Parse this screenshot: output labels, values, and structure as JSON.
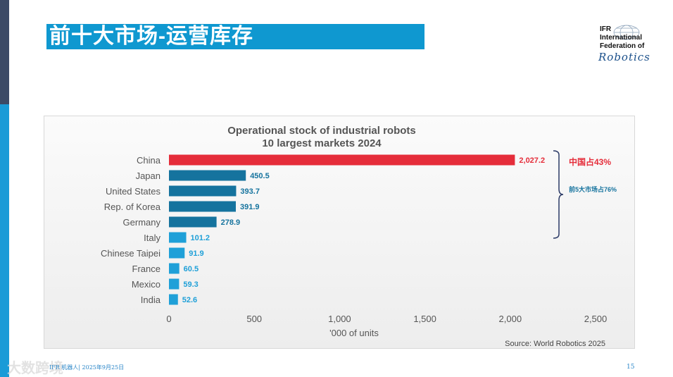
{
  "slide": {
    "title": "前十大市场-运营库存",
    "footer": "IFR 机器人| 2025年9月25日",
    "page_number": "15",
    "watermark": "大数跨境"
  },
  "logo": {
    "line1": "IFR",
    "line2": "International",
    "line3": "Federation of",
    "script": "Robotics"
  },
  "chart_data": {
    "type": "bar",
    "orientation": "horizontal",
    "title": "Operational stock of industrial robots",
    "subtitle": "10 largest markets 2024",
    "xlabel": "'000 of units",
    "ylabel": "",
    "xlim": [
      0,
      2500
    ],
    "xticks": [
      0,
      500,
      1000,
      1500,
      2000,
      2500
    ],
    "xtick_labels": [
      "0",
      "500",
      "1,000",
      "1,500",
      "2,000",
      "2,500"
    ],
    "categories": [
      "China",
      "Japan",
      "United States",
      "Rep. of Korea",
      "Germany",
      "Italy",
      "Chinese Taipei",
      "France",
      "Mexico",
      "India"
    ],
    "values": [
      2027.2,
      450.5,
      393.7,
      391.9,
      278.9,
      101.2,
      91.9,
      60.5,
      59.3,
      52.6
    ],
    "value_labels": [
      "2,027.2",
      "450.5",
      "393.7",
      "391.9",
      "278.9",
      "101.2",
      "91.9",
      "60.5",
      "59.3",
      "52.6"
    ],
    "bar_groups": [
      "highlight",
      "top5",
      "top5",
      "top5",
      "top5",
      "other",
      "other",
      "other",
      "other",
      "other"
    ],
    "colors": {
      "highlight": "#e52d3a",
      "top5": "#15739e",
      "other": "#1fa0d8",
      "axis_text": "#555555",
      "title_text": "#555555"
    },
    "annotations": {
      "china_share": "中国占43%",
      "top5_share": "前5大市场占76%"
    },
    "source": "Source: World Robotics 2025"
  }
}
